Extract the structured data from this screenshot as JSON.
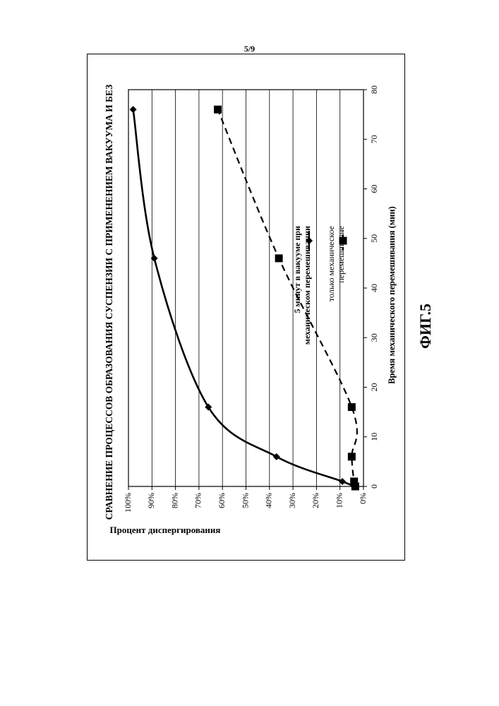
{
  "page": {
    "page_number": "5/9",
    "figure_label": "ФИГ.5"
  },
  "chart_data": {
    "type": "line",
    "title": "СРАВНЕНИЕ ПРОЦЕССОВ ОБРАЗОВАНИЯ СУСПЕНЗИИ С ПРИМЕНЕНИЕМ ВАКУУМА И БЕЗ",
    "xlabel": "Время механического перемешивания (мин)",
    "ylabel": "Процент диспергирования",
    "xlim": [
      0,
      80
    ],
    "ylim": [
      0,
      100
    ],
    "x_ticks": [
      0,
      10,
      20,
      30,
      40,
      50,
      60,
      70,
      80
    ],
    "x_tick_labels": [
      "0",
      "10",
      "20",
      "30",
      "40",
      "50",
      "60",
      "70",
      "80"
    ],
    "y_ticks": [
      0,
      10,
      20,
      30,
      40,
      50,
      60,
      70,
      80,
      90,
      100
    ],
    "y_tick_labels": [
      "0%",
      "10%",
      "20%",
      "30%",
      "40%",
      "50%",
      "60%",
      "70%",
      "80%",
      "90%",
      "100%"
    ],
    "grid": "horizontal",
    "rotation": "rotated 90° counter-clockwise on page",
    "legend_position": "right",
    "series": [
      {
        "name": "5 минут в вакууме при механическом перемешивании",
        "legend_lines": [
          "5 минут в вакууме при",
          "механическом перемешивании"
        ],
        "marker": "diamond",
        "line_style": "solid",
        "color": "#000000",
        "x": [
          0,
          1,
          6,
          16,
          46,
          76
        ],
        "y": [
          4,
          9,
          37,
          66,
          89,
          98
        ]
      },
      {
        "name": "только механическое перемешивание",
        "legend_lines": [
          "только механическое",
          "перемешивание"
        ],
        "marker": "square",
        "line_style": "dashed",
        "color": "#000000",
        "x": [
          0,
          1,
          6,
          16,
          46,
          76
        ],
        "y": [
          3.5,
          4,
          5,
          5,
          36,
          62
        ]
      }
    ]
  }
}
